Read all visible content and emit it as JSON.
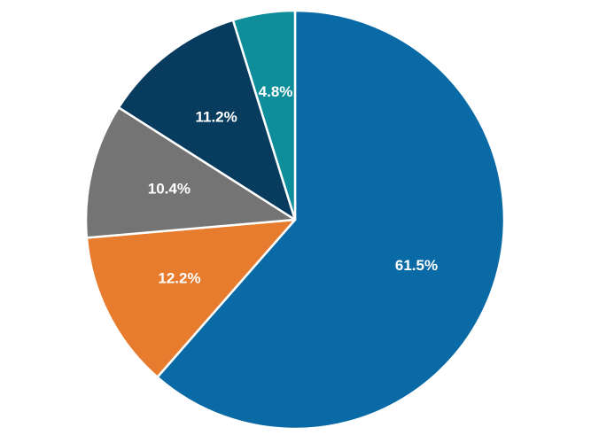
{
  "chart_data": {
    "type": "pie",
    "title": "",
    "legend": "none",
    "start_angle_deg": 0,
    "direction": "clockwise",
    "slices": [
      {
        "value": 61.5,
        "label": "61.5%",
        "color": "#0a6aa5"
      },
      {
        "value": 12.2,
        "label": "12.2%",
        "color": "#e87c2e"
      },
      {
        "value": 10.4,
        "label": "10.4%",
        "color": "#747474"
      },
      {
        "value": 11.2,
        "label": "11.2%",
        "color": "#073c5e"
      },
      {
        "value": 4.8,
        "label": "4.8%",
        "color": "#0e8d9a"
      }
    ]
  }
}
